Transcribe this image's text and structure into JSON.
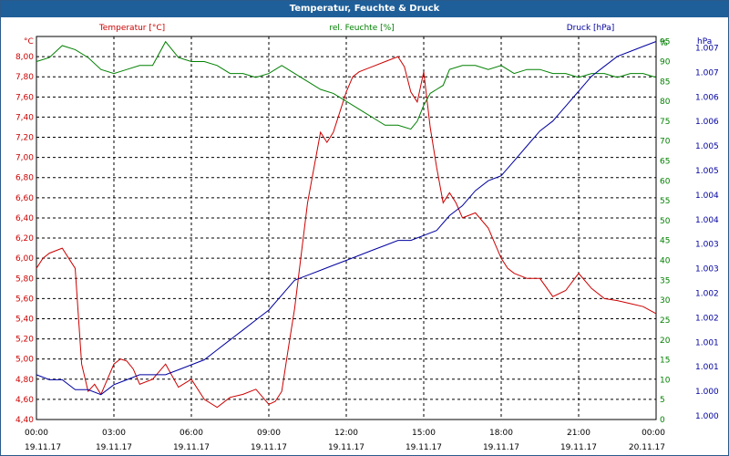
{
  "window": {
    "title": "Temperatur, Feuchte & Druck"
  },
  "colors": {
    "temperature": "#cc0000",
    "humidity": "#008000",
    "pressure": "#0000a0",
    "titlebar": "#1f5f99"
  },
  "chart_data": {
    "type": "line",
    "title": "Temperatur, Feuchte & Druck",
    "grid": true,
    "x_ticks": [
      {
        "time": "00:00",
        "date": "19.11.17"
      },
      {
        "time": "03:00",
        "date": "19.11.17"
      },
      {
        "time": "06:00",
        "date": "19.11.17"
      },
      {
        "time": "09:00",
        "date": "19.11.17"
      },
      {
        "time": "12:00",
        "date": "19.11.17"
      },
      {
        "time": "15:00",
        "date": "19.11.17"
      },
      {
        "time": "18:00",
        "date": "19.11.17"
      },
      {
        "time": "21:00",
        "date": "19.11.17"
      },
      {
        "time": "00:00",
        "date": "20.11.17"
      }
    ],
    "axes": {
      "temperature": {
        "label": "Temperatur [°C]",
        "unit": "°C",
        "ylim": [
          4.4,
          8.2
        ],
        "ticks": [
          "4,40",
          "4,60",
          "4,80",
          "5,00",
          "5,20",
          "5,40",
          "5,60",
          "5,80",
          "6,00",
          "6,20",
          "6,40",
          "6,60",
          "6,80",
          "7,00",
          "7,20",
          "7,40",
          "7,60",
          "7,80",
          "8,00"
        ]
      },
      "humidity": {
        "label": "rel. Feuchte [%]",
        "unit": "%",
        "ylim": [
          0,
          96.3
        ],
        "ticks": [
          "0",
          "5",
          "10",
          "15",
          "20",
          "25",
          "30",
          "35",
          "40",
          "45",
          "50",
          "55",
          "60",
          "65",
          "70",
          "75",
          "80",
          "85",
          "90",
          "95",
          "%"
        ]
      },
      "pressure": {
        "label": "Druck [hPa]",
        "unit": "hPa",
        "ylim": [
          1.0,
          1.0077
        ],
        "ticks": [
          "1.000",
          "1.000",
          "1.001",
          "1.001",
          "1.002",
          "1.002",
          "1.003",
          "1.003",
          "1.004",
          "1.004",
          "1.005",
          "1.005",
          "1.006",
          "1.006",
          "1.007",
          "1.007"
        ]
      }
    },
    "series": [
      {
        "name": "Temperatur [°C]",
        "axis": "temperature",
        "x": [
          0,
          0.25,
          0.5,
          1,
          1.25,
          1.5,
          1.75,
          2,
          2.25,
          2.5,
          2.75,
          3,
          3.25,
          3.5,
          3.75,
          4,
          4.5,
          5,
          5.5,
          6,
          6.5,
          7,
          7.5,
          8,
          8.5,
          9,
          9.25,
          9.5,
          9.75,
          10,
          10.5,
          11,
          11.25,
          11.5,
          12,
          12.25,
          12.5,
          13,
          13.5,
          14,
          14.25,
          14.5,
          14.75,
          15,
          15.25,
          15.5,
          15.75,
          16,
          16.25,
          16.5,
          17,
          17.5,
          18,
          18.25,
          18.5,
          19,
          19.5,
          20,
          20.5,
          21,
          21.5,
          22,
          22.5,
          23,
          23.5,
          24
        ],
        "values": [
          5.9,
          6.0,
          6.05,
          6.1,
          6.0,
          5.9,
          4.95,
          4.68,
          4.75,
          4.65,
          4.8,
          4.95,
          5.0,
          4.98,
          4.9,
          4.75,
          4.8,
          4.95,
          4.72,
          4.8,
          4.6,
          4.52,
          4.62,
          4.65,
          4.7,
          4.55,
          4.58,
          4.68,
          5.1,
          5.5,
          6.55,
          7.25,
          7.15,
          7.25,
          7.65,
          7.8,
          7.85,
          7.9,
          7.95,
          8.0,
          7.9,
          7.65,
          7.55,
          7.85,
          7.3,
          6.9,
          6.55,
          6.65,
          6.55,
          6.4,
          6.45,
          6.3,
          6.0,
          5.9,
          5.85,
          5.8,
          5.8,
          5.62,
          5.68,
          5.85,
          5.7,
          5.6,
          5.58,
          5.55,
          5.52,
          5.45
        ]
      },
      {
        "name": "rel. Feuchte [%]",
        "axis": "humidity",
        "x": [
          0,
          0.5,
          1,
          1.5,
          2,
          2.5,
          3,
          3.5,
          4,
          4.5,
          5,
          5.5,
          6,
          6.5,
          7,
          7.5,
          8,
          8.5,
          9,
          9.25,
          9.5,
          10,
          10.5,
          11,
          11.5,
          12,
          12.5,
          13,
          13.5,
          14,
          14.5,
          14.75,
          15,
          15.25,
          15.5,
          15.75,
          16,
          16.5,
          17,
          17.5,
          18,
          18.25,
          18.5,
          19,
          19.5,
          20,
          20.5,
          21,
          21.5,
          22,
          22.5,
          23,
          23.5,
          24
        ],
        "values": [
          90,
          91,
          94,
          93,
          91,
          88,
          87,
          88,
          89,
          89,
          95,
          91,
          90,
          90,
          89,
          87,
          87,
          86,
          87,
          88,
          89,
          87,
          85,
          83,
          82,
          80,
          78,
          76,
          74,
          74,
          73,
          75,
          79,
          82,
          83,
          84,
          88,
          89,
          89,
          88,
          89,
          88,
          87,
          88,
          88,
          87,
          87,
          86,
          87,
          87,
          86,
          87,
          87,
          86
        ]
      },
      {
        "name": "Druck [hPa]",
        "axis": "pressure",
        "x": [
          0,
          0.5,
          1,
          1.5,
          2,
          2.5,
          3,
          3.5,
          4,
          4.5,
          5,
          5.5,
          6,
          6.5,
          7,
          7.5,
          8,
          8.5,
          9,
          9.5,
          10,
          10.5,
          11,
          11.5,
          12,
          12.5,
          13,
          13.5,
          14,
          14.5,
          15,
          15.5,
          16,
          16.5,
          17,
          17.5,
          18,
          18.5,
          19,
          19.5,
          20,
          20.5,
          21,
          21.5,
          22,
          22.5,
          23,
          23.5,
          24
        ],
        "values": [
          1.0009,
          1.0008,
          1.0008,
          1.0006,
          1.0006,
          1.0005,
          1.0007,
          1.0008,
          1.0009,
          1.0009,
          1.0009,
          1.001,
          1.0011,
          1.0012,
          1.0014,
          1.0016,
          1.0018,
          1.002,
          1.0022,
          1.0025,
          1.0028,
          1.0029,
          1.003,
          1.0031,
          1.0032,
          1.0033,
          1.0034,
          1.0035,
          1.0036,
          1.0036,
          1.0037,
          1.0038,
          1.0041,
          1.0043,
          1.0046,
          1.0048,
          1.0049,
          1.0052,
          1.0055,
          1.0058,
          1.006,
          1.0063,
          1.0066,
          1.0069,
          1.0071,
          1.0073,
          1.0074,
          1.0075,
          1.0076
        ]
      }
    ]
  }
}
